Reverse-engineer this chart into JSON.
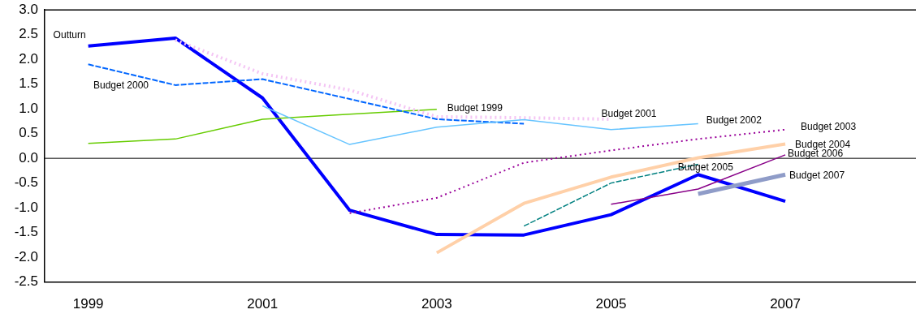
{
  "chart_data": {
    "type": "line",
    "categories": [
      "1999",
      null,
      "2001",
      null,
      "2003",
      null,
      "2005",
      null,
      "2007",
      null
    ],
    "series": [
      {
        "name": "Outturn",
        "color": "#0000ff",
        "values": [
          2.27,
          2.43,
          1.22,
          -1.05,
          -1.54,
          -1.55,
          -1.14,
          -0.33,
          -0.87,
          null
        ]
      },
      {
        "name": "Budget 1999",
        "color": "#66cc00",
        "values": [
          0.3,
          0.39,
          0.79,
          0.89,
          0.99,
          null,
          null,
          null,
          null,
          null
        ]
      },
      {
        "name": "Budget 2000",
        "color": "#0066ff",
        "line_style": "dashed",
        "values": [
          1.9,
          1.48,
          1.6,
          1.2,
          0.79,
          0.7,
          null,
          null,
          null,
          null
        ]
      },
      {
        "name": "Budget 2001",
        "color": "#f4c4f4",
        "line_style": "dotted",
        "values": [
          null,
          2.39,
          1.71,
          1.38,
          0.84,
          0.82,
          0.79,
          null,
          null,
          null
        ]
      },
      {
        "name": "Budget 2002",
        "color": "#66c4ff",
        "values": [
          null,
          null,
          1.06,
          0.28,
          0.63,
          0.78,
          0.58,
          0.7,
          null,
          null
        ]
      },
      {
        "name": "Budget 2003",
        "color": "#990099",
        "line_style": "dotted",
        "values": [
          null,
          null,
          null,
          -1.11,
          -0.8,
          -0.09,
          0.16,
          0.39,
          0.58,
          null
        ]
      },
      {
        "name": "Budget 2004",
        "color": "#ffd0a8",
        "values": [
          null,
          null,
          null,
          null,
          -1.91,
          -0.91,
          -0.38,
          0.01,
          0.29,
          null
        ]
      },
      {
        "name": "Budget 2005",
        "color": "#008080",
        "line_style": "dashed",
        "values": [
          null,
          null,
          null,
          null,
          null,
          -1.37,
          -0.5,
          -0.12,
          null,
          null
        ]
      },
      {
        "name": "Budget 2006",
        "color": "#880088",
        "values": [
          null,
          null,
          null,
          null,
          null,
          null,
          -0.93,
          -0.62,
          0.07,
          null
        ]
      },
      {
        "name": "Budget 2007",
        "color": "#8f9cc8",
        "values": [
          null,
          null,
          null,
          null,
          null,
          null,
          null,
          -0.72,
          -0.33,
          null
        ]
      }
    ],
    "ylim": [
      -2.5,
      3.0
    ],
    "yticks": [
      {
        "value": -2.5,
        "label": "-2.5"
      },
      {
        "value": -2,
        "label": "-2.0"
      },
      {
        "value": -1.5,
        "label": "-1.5"
      },
      {
        "value": -1,
        "label": "-1.0"
      },
      {
        "value": -0.5,
        "label": "-0.5"
      },
      {
        "value": 0,
        "label": "0.0"
      },
      {
        "value": 0.5,
        "label": "0.5"
      },
      {
        "value": 1,
        "label": "1.0"
      },
      {
        "value": 1.5,
        "label": "1.5"
      },
      {
        "value": 2,
        "label": "2.0"
      },
      {
        "value": 2.5,
        "label": "2.5"
      },
      {
        "value": 3,
        "label": "3.0"
      }
    ],
    "ref_lines": [
      {
        "axis": "y",
        "value": 0,
        "color": "#000000"
      }
    ],
    "grid": false,
    "legend": false,
    "marker": "none"
  }
}
